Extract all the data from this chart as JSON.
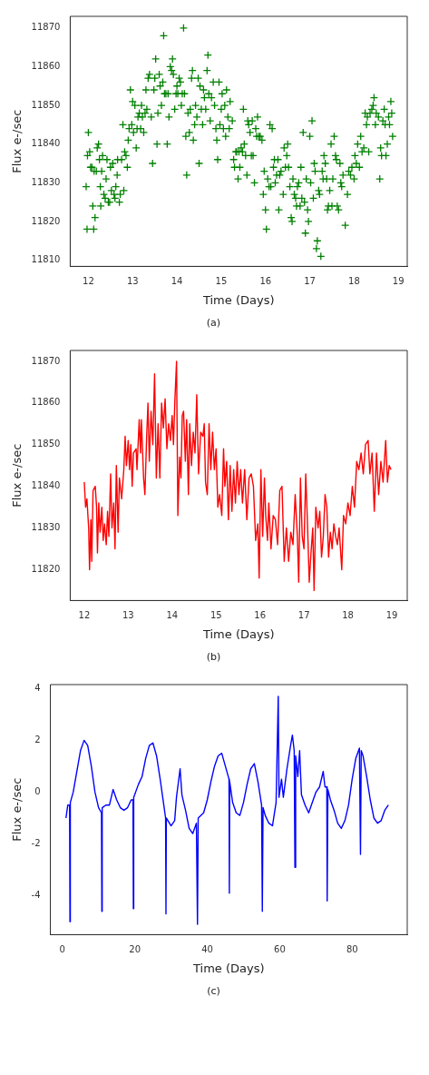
{
  "chart_data": [
    {
      "type": "scatter",
      "xlabel": "Time (Days)",
      "ylabel": "Flux e-/sec",
      "annotations": [
        "(a)"
      ],
      "xlim": [
        11.59,
        19.2
      ],
      "ylim": [
        11808.4,
        11873
      ],
      "xticks": [
        12,
        13,
        14,
        15,
        16,
        17,
        18,
        19
      ],
      "yticks": [
        11810,
        11820,
        11830,
        11840,
        11850,
        11860,
        11870
      ],
      "grid": false,
      "legend": false,
      "marker": "cross",
      "series": [
        {
          "color": "#008000",
          "x": [
            11.95,
            11.97,
            11.98,
            12.0,
            12.03,
            12.05,
            12.08,
            12.1,
            12.12,
            12.13,
            12.15,
            12.18,
            12.2,
            12.23,
            12.25,
            12.27,
            12.28,
            12.3,
            12.32,
            12.35,
            12.38,
            12.4,
            12.42,
            12.45,
            12.48,
            12.5,
            12.52,
            12.55,
            12.58,
            12.6,
            12.62,
            12.65,
            12.66,
            12.7,
            12.72,
            12.75,
            12.78,
            12.8,
            12.82,
            12.85,
            12.88,
            12.9,
            12.92,
            12.95,
            12.98,
            13.0,
            13.02,
            13.05,
            13.08,
            13.1,
            13.12,
            13.15,
            13.18,
            13.2,
            13.22,
            13.25,
            13.28,
            13.3,
            13.32,
            13.35,
            13.38,
            13.42,
            13.45,
            13.48,
            13.5,
            13.52,
            13.55,
            13.57,
            13.6,
            13.62,
            13.65,
            13.68,
            13.7,
            13.72,
            13.75,
            13.78,
            13.8,
            13.82,
            13.85,
            13.88,
            13.9,
            13.92,
            13.95,
            13.98,
            14.0,
            14.02,
            14.05,
            14.08,
            14.1,
            14.12,
            14.15,
            14.17,
            14.2,
            14.22,
            14.25,
            14.28,
            14.3,
            14.33,
            14.35,
            14.37,
            14.4,
            14.42,
            14.45,
            14.48,
            14.5,
            14.52,
            14.55,
            14.58,
            14.6,
            14.62,
            14.65,
            14.68,
            14.7,
            14.72,
            14.75,
            14.78,
            14.82,
            14.85,
            14.88,
            14.9,
            14.92,
            14.95,
            14.97,
            15.0,
            15.02,
            15.05,
            15.08,
            15.1,
            15.12,
            15.15,
            15.18,
            15.2,
            15.25,
            15.28,
            15.3,
            15.33,
            15.35,
            15.38,
            15.4,
            15.42,
            15.45,
            15.48,
            15.5,
            15.52,
            15.55,
            15.58,
            15.6,
            15.62,
            15.65,
            15.68,
            15.7,
            15.72,
            15.75,
            15.78,
            15.8,
            15.82,
            15.85,
            15.88,
            15.92,
            15.95,
            15.97,
            16.0,
            16.02,
            16.05,
            16.08,
            16.1,
            16.12,
            16.15,
            16.18,
            16.2,
            16.22,
            16.25,
            16.28,
            16.3,
            16.32,
            16.35,
            16.4,
            16.42,
            16.45,
            16.48,
            16.5,
            16.52,
            16.55,
            16.58,
            16.6,
            16.62,
            16.65,
            16.68,
            16.7,
            16.72,
            16.75,
            16.78,
            16.8,
            16.82,
            16.85,
            16.88,
            16.9,
            16.92,
            16.95,
            16.97,
            17.0,
            17.02,
            17.05,
            17.08,
            17.1,
            17.12,
            17.15,
            17.17,
            17.2,
            17.22,
            17.25,
            17.28,
            17.3,
            17.32,
            17.35,
            17.38,
            17.4,
            17.42,
            17.45,
            17.48,
            17.5,
            17.52,
            17.55,
            17.58,
            17.6,
            17.62,
            17.65,
            17.68,
            17.7,
            17.72,
            17.75,
            17.8,
            17.85,
            17.88,
            17.92,
            17.95,
            18.0,
            18.02,
            18.05,
            18.08,
            18.12,
            18.15,
            18.18,
            18.22,
            18.25,
            18.28,
            18.3,
            18.33,
            18.36,
            18.4,
            18.43,
            18.45,
            18.48,
            18.5,
            18.55,
            18.58,
            18.6,
            18.62,
            18.65,
            18.68,
            18.7,
            18.72,
            18.75,
            18.78,
            18.8,
            18.83,
            18.85,
            18.87
          ],
          "values": [
            11829,
            11818,
            11837,
            11843,
            11838,
            11834,
            11834,
            11824,
            11818,
            11833,
            11821,
            11833,
            11839,
            11840,
            11836,
            11829,
            11824,
            11833,
            11837,
            11827,
            11826,
            11831,
            11836,
            11825,
            11825,
            11834,
            11828,
            11835,
            11827,
            11826,
            11829,
            11832,
            11836,
            11825,
            11827,
            11836,
            11845,
            11828,
            11838,
            11837,
            11834,
            11841,
            11844,
            11854,
            11845,
            11851,
            11843,
            11850,
            11839,
            11844,
            11847,
            11848,
            11844,
            11850,
            11847,
            11843,
            11848,
            11854,
            11849,
            11857,
            11858,
            11847,
            11835,
            11854,
            11857,
            11862,
            11840,
            11848,
            11858,
            11855,
            11850,
            11856,
            11868,
            11853,
            11853,
            11840,
            11853,
            11847,
            11860,
            11859,
            11862,
            11858,
            11849,
            11853,
            11855,
            11853,
            11857,
            11856,
            11850,
            11853,
            11870,
            11853,
            11842,
            11832,
            11848,
            11843,
            11849,
            11857,
            11859,
            11841,
            11845,
            11850,
            11847,
            11857,
            11835,
            11855,
            11849,
            11845,
            11854,
            11852,
            11849,
            11859,
            11863,
            11853,
            11846,
            11852,
            11856,
            11850,
            11844,
            11841,
            11836,
            11856,
            11845,
            11849,
            11853,
            11844,
            11850,
            11842,
            11854,
            11847,
            11844,
            11851,
            11846,
            11836,
            11834,
            11838,
            11838,
            11831,
            11838,
            11834,
            11839,
            11838,
            11849,
            11840,
            11837,
            11832,
            11846,
            11845,
            11843,
            11837,
            11846,
            11837,
            11830,
            11844,
            11842,
            11847,
            11842,
            11842,
            11841,
            11827,
            11833,
            11823,
            11818,
            11831,
            11829,
            11845,
            11829,
            11844,
            11834,
            11836,
            11830,
            11832,
            11836,
            11823,
            11832,
            11833,
            11827,
            11839,
            11834,
            11837,
            11840,
            11834,
            11829,
            11821,
            11820,
            11831,
            11827,
            11826,
            11824,
            11829,
            11830,
            11824,
            11834,
            11826,
            11843,
            11825,
            11817,
            11831,
            11823,
            11820,
            11842,
            11830,
            11846,
            11826,
            11835,
            11833,
            11813,
            11815,
            11828,
            11827,
            11811,
            11833,
            11831,
            11837,
            11835,
            11831,
            11823,
            11824,
            11828,
            11840,
            11824,
            11831,
            11842,
            11837,
            11836,
            11824,
            11823,
            11835,
            11830,
            11829,
            11832,
            11819,
            11827,
            11833,
            11832,
            11834,
            11831,
            11837,
            11835,
            11840,
            11834,
            11842,
            11838,
            11839,
            11848,
            11845,
            11847,
            11838,
            11848,
            11849,
            11850,
            11852,
            11845,
            11848,
            11847,
            11831,
            11839,
            11837,
            11846,
            11849,
            11845,
            11837,
            11840,
            11847,
            11845,
            11851,
            11848,
            11842
          ]
        }
      ]
    },
    {
      "type": "line",
      "xlabel": "Time (Days)",
      "ylabel": "Flux e-/sec",
      "annotations": [
        "(b)"
      ],
      "xlim": [
        11.68,
        19.35
      ],
      "ylim": [
        11812.6,
        11872.6
      ],
      "xticks": [
        12,
        13,
        14,
        15,
        16,
        17,
        18,
        19
      ],
      "yticks": [
        11820,
        11830,
        11840,
        11850,
        11860,
        11870
      ],
      "grid": false,
      "legend": false,
      "marker": "none",
      "line_style": "solid",
      "series": [
        {
          "color": "#ff0000",
          "x": [
            12.0,
            12.03,
            12.06,
            12.1,
            12.12,
            12.15,
            12.17,
            12.2,
            12.25,
            12.28,
            12.3,
            12.33,
            12.36,
            12.4,
            12.43,
            12.46,
            12.5,
            12.53,
            12.56,
            12.6,
            12.63,
            12.67,
            12.7,
            12.73,
            12.77,
            12.8,
            12.85,
            12.9,
            12.93,
            12.96,
            13.0,
            13.03,
            13.06,
            13.09,
            13.12,
            13.18,
            13.2,
            13.25,
            13.28,
            13.3,
            13.35,
            13.38,
            13.42,
            13.45,
            13.48,
            13.52,
            13.56,
            13.6,
            13.64,
            13.68,
            13.72,
            13.76,
            13.8,
            13.84,
            13.88,
            13.92,
            13.96,
            14.0,
            14.03,
            14.06,
            14.1,
            14.13,
            14.17,
            14.2,
            14.23,
            14.26,
            14.3,
            14.33,
            14.37,
            14.4,
            14.44,
            14.48,
            14.52,
            14.56,
            14.6,
            14.65,
            14.7,
            14.73,
            14.76,
            14.8,
            14.84,
            14.88,
            14.92,
            14.96,
            15.0,
            15.04,
            15.08,
            15.13,
            15.17,
            15.2,
            15.24,
            15.28,
            15.32,
            15.36,
            15.4,
            15.44,
            15.48,
            15.52,
            15.56,
            15.6,
            15.65,
            15.7,
            15.75,
            15.8,
            15.85,
            15.9,
            15.95,
            15.98,
            16.02,
            16.06,
            16.1,
            16.13,
            16.17,
            16.2,
            16.25,
            16.3,
            16.35,
            16.4,
            16.45,
            16.5,
            16.55,
            16.6,
            16.65,
            16.7,
            16.75,
            16.8,
            16.85,
            16.88,
            16.92,
            16.96,
            17.0,
            17.04,
            17.08,
            17.12,
            17.16,
            17.2,
            17.23,
            17.27,
            17.32,
            17.36,
            17.4,
            17.44,
            17.48,
            17.52,
            17.56,
            17.6,
            17.64,
            17.68,
            17.72,
            17.76,
            17.8,
            17.86,
            17.9,
            17.95,
            18.0,
            18.05,
            18.1,
            18.15,
            18.2,
            18.25,
            18.3,
            18.35,
            18.4,
            18.46,
            18.5,
            18.55,
            18.6,
            18.65,
            18.7,
            18.75,
            18.8,
            18.86,
            18.9,
            18.94,
            18.98
          ],
          "values": [
            11841,
            11835,
            11837,
            11830,
            11820,
            11832,
            11822,
            11839,
            11840,
            11835,
            11824,
            11836,
            11829,
            11835,
            11827,
            11831,
            11826,
            11834,
            11828,
            11843,
            11830,
            11836,
            11825,
            11845,
            11829,
            11842,
            11837,
            11844,
            11852,
            11845,
            11851,
            11844,
            11850,
            11840,
            11848,
            11849,
            11844,
            11856,
            11848,
            11856,
            11842,
            11838,
            11852,
            11860,
            11846,
            11858,
            11850,
            11867,
            11842,
            11855,
            11842,
            11860,
            11854,
            11861,
            11849,
            11855,
            11851,
            11857,
            11850,
            11860,
            11870,
            11833,
            11847,
            11842,
            11857,
            11858,
            11846,
            11856,
            11838,
            11855,
            11845,
            11853,
            11848,
            11862,
            11843,
            11853,
            11852,
            11855,
            11841,
            11838,
            11855,
            11844,
            11853,
            11844,
            11849,
            11835,
            11838,
            11833,
            11849,
            11840,
            11846,
            11832,
            11845,
            11834,
            11844,
            11836,
            11846,
            11838,
            11844,
            11836,
            11844,
            11832,
            11842,
            11843,
            11840,
            11827,
            11831,
            11818,
            11844,
            11828,
            11842,
            11833,
            11827,
            11836,
            11825,
            11833,
            11832,
            11826,
            11839,
            11840,
            11822,
            11830,
            11822,
            11829,
            11826,
            11838,
            11828,
            11817,
            11842,
            11828,
            11825,
            11843,
            11831,
            11817,
            11824,
            11830,
            11815,
            11835,
            11830,
            11834,
            11823,
            11828,
            11838,
            11835,
            11823,
            11829,
            11825,
            11831,
            11828,
            11826,
            11830,
            11820,
            11833,
            11831,
            11836,
            11833,
            11840,
            11835,
            11846,
            11844,
            11848,
            11843,
            11850,
            11851,
            11843,
            11848,
            11834,
            11848,
            11838,
            11846,
            11841,
            11851,
            11841,
            11845,
            11844
          ]
        }
      ]
    },
    {
      "type": "line",
      "xlabel": "Time (Days)",
      "ylabel": "Flux e-/sec",
      "annotations": [
        "(c)"
      ],
      "xlim": [
        -3.3,
        95.2
      ],
      "ylim": [
        -5.5,
        4.15
      ],
      "xticks": [
        0,
        20,
        40,
        60,
        80
      ],
      "yticks": [
        -4,
        -2,
        0,
        2,
        4
      ],
      "grid": false,
      "legend": false,
      "marker": "none",
      "line_style": "solid",
      "series": [
        {
          "color": "#0000ff",
          "x": [
            1,
            1.5,
            2,
            2.1,
            2.2,
            3,
            4,
            5,
            6,
            7,
            8,
            9,
            10,
            10.8,
            10.9,
            11,
            12,
            13,
            14,
            15,
            16,
            17,
            18,
            19,
            19.5,
            19.6,
            19.7,
            21,
            22,
            23,
            24,
            25,
            26,
            27,
            28,
            28.5,
            28.6,
            28.7,
            30,
            31,
            31.5,
            32.5,
            33,
            34,
            35,
            36,
            37,
            37.3,
            37.5,
            39,
            40,
            41,
            42,
            43,
            44,
            45,
            46,
            46.1,
            46.2,
            47,
            48,
            49,
            50,
            51,
            52,
            53,
            54,
            55,
            55.2,
            55.4,
            56,
            57,
            58,
            59,
            59.6,
            59.8,
            60.5,
            61,
            62,
            63,
            63.5,
            64,
            64.2,
            64.4,
            65,
            65.5,
            66,
            67,
            68,
            69,
            70,
            71,
            72,
            72.5,
            73,
            73.1,
            73.3,
            74,
            75,
            76,
            77,
            78,
            79,
            80,
            81,
            82,
            82.3,
            82.5,
            83,
            84,
            85,
            86,
            87,
            88,
            89,
            90
          ],
          "values": [
            -1,
            -0.5,
            -0.5,
            -5,
            -0.4,
            0,
            0.8,
            1.6,
            2.0,
            1.8,
            1.0,
            0,
            -0.6,
            -0.8,
            -4.6,
            -0.6,
            -0.5,
            -0.5,
            0.1,
            -0.3,
            -0.6,
            -0.7,
            -0.6,
            -0.3,
            -0.3,
            -4.5,
            -0.2,
            0.3,
            0.6,
            1.3,
            1.8,
            1.9,
            1.4,
            0.5,
            -0.5,
            -1.0,
            -4.7,
            -1.0,
            -1.3,
            -1.1,
            -0.2,
            0.9,
            -0.1,
            -0.7,
            -1.4,
            -1.6,
            -1.2,
            -5.1,
            -1.0,
            -0.8,
            -0.3,
            0.4,
            1.0,
            1.4,
            1.5,
            1.0,
            0.5,
            -3.9,
            0.4,
            -0.4,
            -0.8,
            -0.9,
            -0.4,
            0.3,
            0.9,
            1.1,
            0.4,
            -0.5,
            -4.6,
            -0.6,
            -0.9,
            -1.2,
            -1.3,
            -0.4,
            3.7,
            -0.2,
            0.5,
            -0.2,
            0.9,
            1.8,
            2.2,
            1.6,
            -2.9,
            1.4,
            0.6,
            1.6,
            -0.1,
            -0.5,
            -0.8,
            -0.4,
            0.0,
            0.2,
            0.8,
            0.2,
            0.2,
            -4.2,
            0.1,
            -0.3,
            -0.7,
            -1.2,
            -1.4,
            -1.1,
            -0.5,
            0.5,
            1.3,
            1.7,
            -2.4,
            1.6,
            1.4,
            0.6,
            -0.3,
            -1.0,
            -1.2,
            -1.1,
            -0.7,
            -0.5
          ]
        }
      ]
    }
  ]
}
